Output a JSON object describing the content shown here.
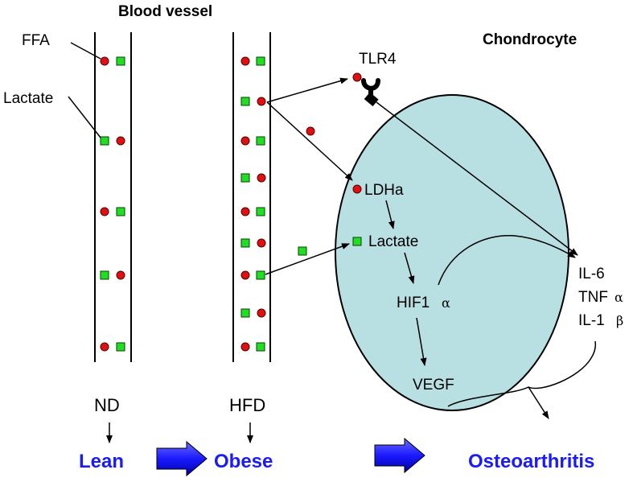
{
  "labels": {
    "blood_vessel": "Blood vessel",
    "chondrocyte": "Chondrocyte",
    "ffa": "FFA",
    "lactate_legend": "Lactate",
    "tlr4": "TLR4",
    "ldha": "LDHa",
    "lactate_cell": "Lactate",
    "hif1": "HIF1",
    "hif1_sym": "α",
    "vegf": "VEGF",
    "il6": "IL-6",
    "tnf": "TNF",
    "tnf_sym": "α",
    "il1": "IL-1",
    "il1_sym": "β",
    "nd": "ND",
    "hfd": "HFD",
    "lean": "Lean",
    "obese": "Obese",
    "osteoarthritis": "Osteoarthritis"
  },
  "colors": {
    "ffa_dot": "#e01010",
    "lactate_square": "#22dd22",
    "cell_fill": "#b8dfe2",
    "arrow_blue": "#1a1aff",
    "text_blue": "#1a1aff"
  },
  "icons": {
    "receptor": "tlr4-receptor-icon",
    "process_arrow": "block-arrow-icon"
  }
}
